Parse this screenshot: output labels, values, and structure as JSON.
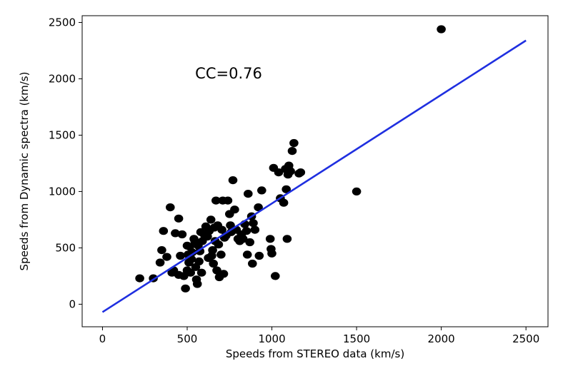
{
  "chart_data": {
    "type": "scatter",
    "title": "",
    "xlabel": "Speeds from STEREO data (km/s)",
    "ylabel": "Speeds from Dynamic spectra (km/s)",
    "xlim": [
      -120,
      2630
    ],
    "ylim": [
      -200,
      2560
    ],
    "xticks": [
      0,
      500,
      1000,
      1500,
      2000,
      2500
    ],
    "yticks": [
      0,
      500,
      1000,
      1500,
      2000,
      2500
    ],
    "annotation": "CC=0.76",
    "marker_color": "#000000",
    "fit_line_color": "#1f2fe0",
    "fit_line": {
      "x": [
        0,
        2500
      ],
      "y": [
        -70,
        2340
      ]
    },
    "points": [
      [
        220,
        230
      ],
      [
        300,
        230
      ],
      [
        340,
        370
      ],
      [
        350,
        480
      ],
      [
        360,
        650
      ],
      [
        400,
        860
      ],
      [
        380,
        420
      ],
      [
        410,
        280
      ],
      [
        420,
        300
      ],
      [
        430,
        630
      ],
      [
        450,
        760
      ],
      [
        450,
        260
      ],
      [
        460,
        430
      ],
      [
        470,
        620
      ],
      [
        480,
        250
      ],
      [
        490,
        140
      ],
      [
        500,
        300
      ],
      [
        500,
        520
      ],
      [
        505,
        440
      ],
      [
        510,
        370
      ],
      [
        515,
        510
      ],
      [
        520,
        280
      ],
      [
        525,
        400
      ],
      [
        530,
        460
      ],
      [
        540,
        580
      ],
      [
        545,
        560
      ],
      [
        550,
        330
      ],
      [
        555,
        220
      ],
      [
        560,
        180
      ],
      [
        565,
        520
      ],
      [
        570,
        380
      ],
      [
        575,
        470
      ],
      [
        580,
        640
      ],
      [
        585,
        280
      ],
      [
        590,
        560
      ],
      [
        600,
        620
      ],
      [
        610,
        690
      ],
      [
        620,
        600
      ],
      [
        625,
        410
      ],
      [
        630,
        650
      ],
      [
        640,
        750
      ],
      [
        645,
        430
      ],
      [
        650,
        480
      ],
      [
        655,
        360
      ],
      [
        660,
        680
      ],
      [
        665,
        560
      ],
      [
        670,
        920
      ],
      [
        675,
        300
      ],
      [
        680,
        700
      ],
      [
        685,
        530
      ],
      [
        690,
        240
      ],
      [
        700,
        440
      ],
      [
        705,
        660
      ],
      [
        710,
        920
      ],
      [
        715,
        270
      ],
      [
        720,
        590
      ],
      [
        730,
        610
      ],
      [
        740,
        920
      ],
      [
        750,
        800
      ],
      [
        755,
        700
      ],
      [
        760,
        640
      ],
      [
        770,
        1100
      ],
      [
        780,
        840
      ],
      [
        790,
        660
      ],
      [
        800,
        580
      ],
      [
        810,
        560
      ],
      [
        820,
        620
      ],
      [
        830,
        580
      ],
      [
        840,
        710
      ],
      [
        850,
        650
      ],
      [
        855,
        440
      ],
      [
        860,
        980
      ],
      [
        870,
        550
      ],
      [
        880,
        780
      ],
      [
        885,
        360
      ],
      [
        890,
        720
      ],
      [
        900,
        660
      ],
      [
        920,
        860
      ],
      [
        925,
        430
      ],
      [
        940,
        1010
      ],
      [
        990,
        580
      ],
      [
        995,
        490
      ],
      [
        1000,
        450
      ],
      [
        1010,
        1210
      ],
      [
        1020,
        250
      ],
      [
        1040,
        1170
      ],
      [
        1050,
        940
      ],
      [
        1070,
        900
      ],
      [
        1080,
        1200
      ],
      [
        1085,
        1020
      ],
      [
        1090,
        580
      ],
      [
        1095,
        1150
      ],
      [
        1100,
        1230
      ],
      [
        1110,
        1180
      ],
      [
        1120,
        1360
      ],
      [
        1130,
        1430
      ],
      [
        1160,
        1160
      ],
      [
        1170,
        1170
      ],
      [
        1500,
        1000
      ],
      [
        2000,
        2440
      ]
    ]
  }
}
